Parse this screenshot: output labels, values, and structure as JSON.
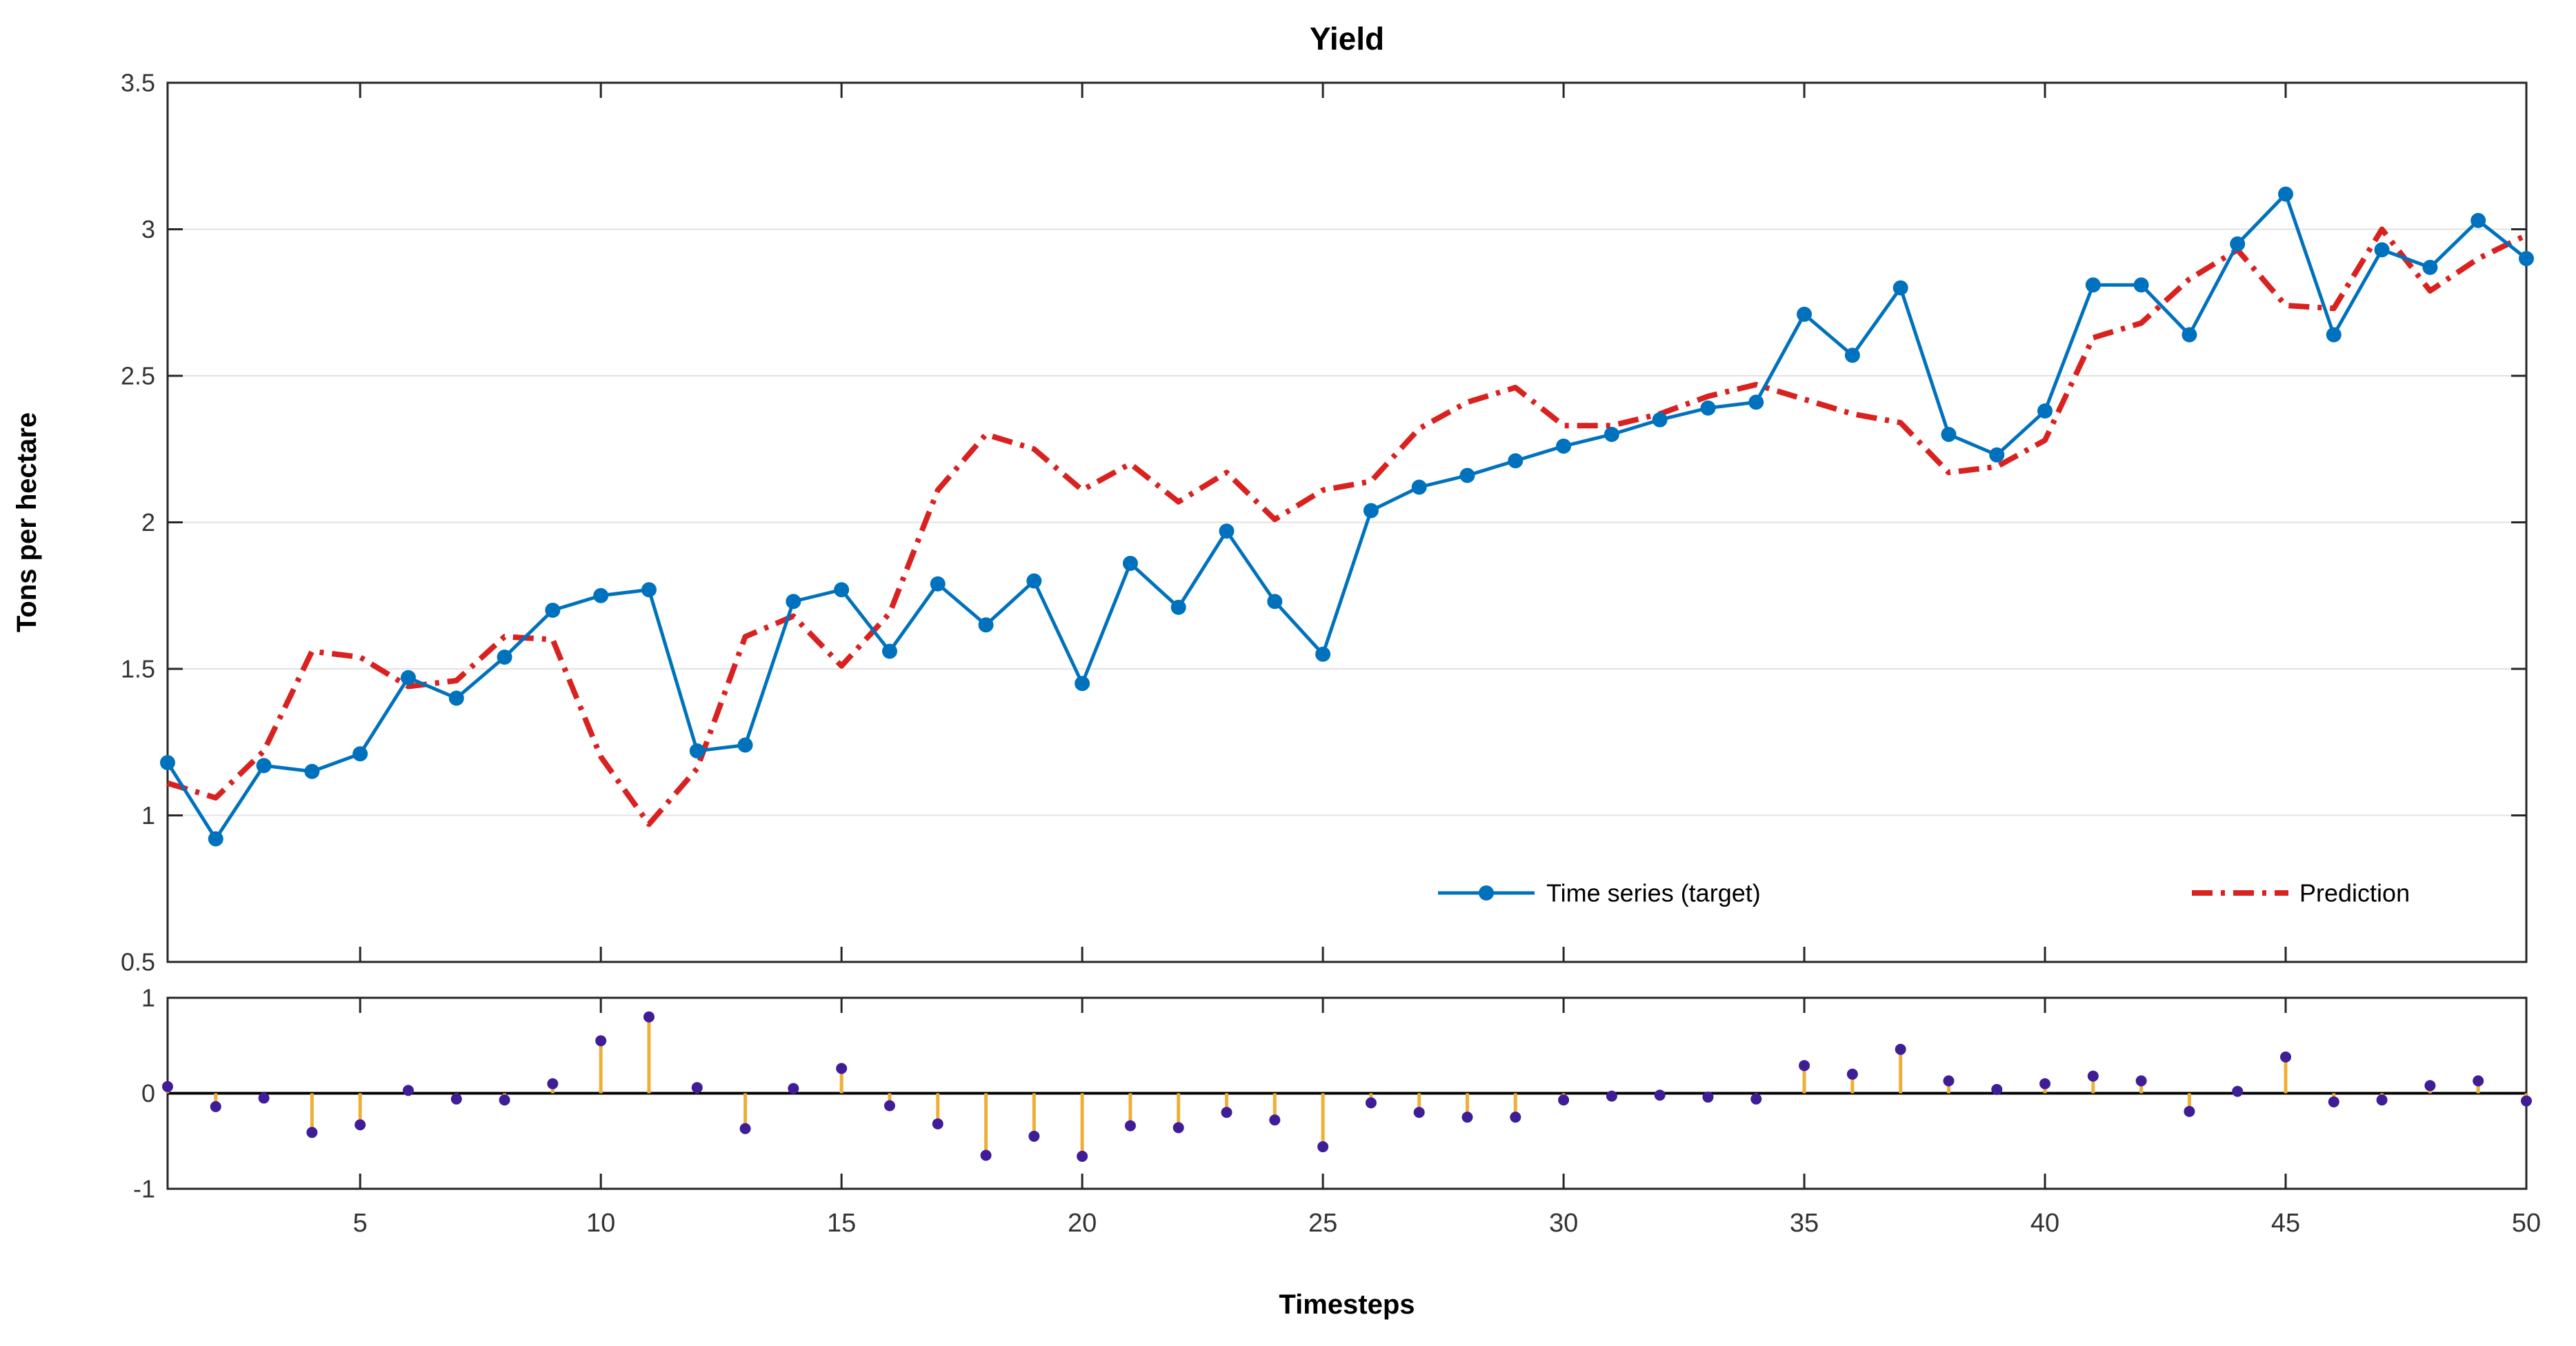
{
  "figure": {
    "title": "Yield",
    "background": "#ffffff",
    "colors": {
      "target_blue": "#0072BD",
      "prediction_red": "#D92120",
      "stem_orange": "#EFAF36",
      "stem_marker_purple": "#3E1D96",
      "axis_line": "#262626",
      "grid_line": "#E2E2E2",
      "tick_text": "#333333",
      "label_text": "#000000",
      "baseline_black": "#000000"
    }
  },
  "chart_data": [
    {
      "id": "main",
      "type": "line",
      "title": "Yield",
      "ylabel": "Tons per hectare",
      "xlabel": "",
      "xlim": [
        1,
        50
      ],
      "ylim": [
        0.5,
        3.5
      ],
      "yticks": [
        0.5,
        1,
        1.5,
        2,
        2.5,
        3,
        3.5
      ],
      "ytick_labels": [
        "0.5",
        "1",
        "1.5",
        "2",
        "2.5",
        "3",
        "3.5"
      ],
      "xticks": [
        5,
        10,
        15,
        20,
        25,
        30,
        35,
        40,
        45,
        50
      ],
      "xtick_labels_shown": false,
      "grid": "horizontal-only",
      "legend_position": "inside-bottom",
      "x": [
        1,
        2,
        3,
        4,
        5,
        6,
        7,
        8,
        9,
        10,
        11,
        12,
        13,
        14,
        15,
        16,
        17,
        18,
        19,
        20,
        21,
        22,
        23,
        24,
        25,
        26,
        27,
        28,
        29,
        30,
        31,
        32,
        33,
        34,
        35,
        36,
        37,
        38,
        39,
        40,
        41,
        42,
        43,
        44,
        45,
        46,
        47,
        48,
        49,
        50
      ],
      "series": [
        {
          "name": "Time series (target)",
          "color": "#0072BD",
          "line_style": "solid",
          "marker": "circle",
          "values": [
            1.18,
            0.92,
            1.17,
            1.15,
            1.21,
            1.47,
            1.4,
            1.54,
            1.7,
            1.75,
            1.77,
            1.22,
            1.24,
            1.73,
            1.77,
            1.56,
            1.79,
            1.65,
            1.8,
            1.45,
            1.86,
            1.71,
            1.97,
            1.73,
            1.55,
            2.04,
            2.12,
            2.16,
            2.21,
            2.26,
            2.3,
            2.35,
            2.39,
            2.41,
            2.71,
            2.57,
            2.8,
            2.3,
            2.23,
            2.38,
            2.81,
            2.81,
            2.64,
            2.95,
            3.12,
            2.64,
            2.93,
            2.87,
            3.03,
            2.9
          ]
        },
        {
          "name": "Prediction",
          "color": "#D92120",
          "line_style": "dash-dot",
          "marker": "none",
          "values": [
            1.11,
            1.06,
            1.22,
            1.56,
            1.54,
            1.44,
            1.46,
            1.61,
            1.6,
            1.2,
            0.97,
            1.16,
            1.61,
            1.68,
            1.51,
            1.69,
            2.11,
            2.3,
            2.25,
            2.11,
            2.2,
            2.07,
            2.17,
            2.01,
            2.11,
            2.14,
            2.32,
            2.41,
            2.46,
            2.33,
            2.33,
            2.37,
            2.43,
            2.47,
            2.42,
            2.37,
            2.34,
            2.17,
            2.19,
            2.28,
            2.63,
            2.68,
            2.83,
            2.93,
            2.74,
            2.73,
            3.0,
            2.79,
            2.9,
            2.98
          ]
        }
      ]
    },
    {
      "id": "residual",
      "type": "stem",
      "title": "",
      "ylabel": "",
      "xlabel": "Timesteps",
      "xlim": [
        1,
        50
      ],
      "ylim": [
        -1,
        1
      ],
      "yticks": [
        -1,
        0,
        1
      ],
      "ytick_labels": [
        "-1",
        "0",
        "1"
      ],
      "xticks": [
        5,
        10,
        15,
        20,
        25,
        30,
        35,
        40,
        45,
        50
      ],
      "xtick_labels": [
        "5",
        "10",
        "15",
        "20",
        "25",
        "30",
        "35",
        "40",
        "45",
        "50"
      ],
      "grid": "none",
      "x": [
        1,
        2,
        3,
        4,
        5,
        6,
        7,
        8,
        9,
        10,
        11,
        12,
        13,
        14,
        15,
        16,
        17,
        18,
        19,
        20,
        21,
        22,
        23,
        24,
        25,
        26,
        27,
        28,
        29,
        30,
        31,
        32,
        33,
        34,
        35,
        36,
        37,
        38,
        39,
        40,
        41,
        42,
        43,
        44,
        45,
        46,
        47,
        48,
        49,
        50
      ],
      "values": [
        0.07,
        -0.14,
        -0.05,
        -0.41,
        -0.33,
        0.03,
        -0.06,
        -0.07,
        0.1,
        0.55,
        0.8,
        0.06,
        -0.37,
        0.05,
        0.26,
        -0.13,
        -0.32,
        -0.65,
        -0.45,
        -0.66,
        -0.34,
        -0.36,
        -0.2,
        -0.28,
        -0.56,
        -0.1,
        -0.2,
        -0.25,
        -0.25,
        -0.07,
        -0.03,
        -0.02,
        -0.04,
        -0.06,
        0.29,
        0.2,
        0.46,
        0.13,
        0.04,
        0.1,
        0.18,
        0.13,
        -0.19,
        0.02,
        0.38,
        -0.09,
        -0.07,
        0.08,
        0.13,
        -0.08
      ],
      "stem_color": "#EFAF36",
      "marker_color": "#3E1D96",
      "baseline_color": "#000000"
    }
  ],
  "legend": {
    "entries": [
      {
        "label": "Time series (target)",
        "color": "#0072BD",
        "style": "solid-with-marker"
      },
      {
        "label": "Prediction",
        "color": "#D92120",
        "style": "dash-dot"
      }
    ]
  }
}
